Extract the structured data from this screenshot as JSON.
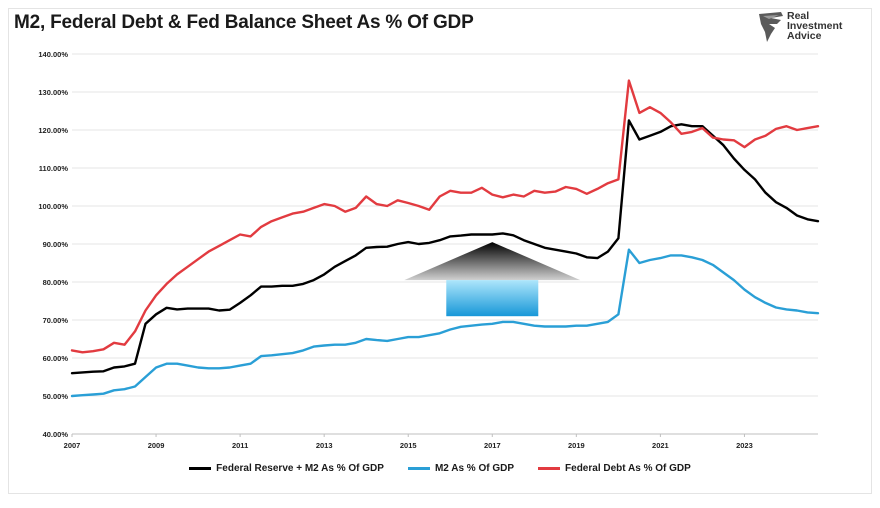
{
  "title": "M2, Federal Debt & Fed Balance Sheet As % Of GDP",
  "logo": {
    "line1": "Real",
    "line2": "Investment",
    "line3": "Advice",
    "icon": "eagle-icon"
  },
  "colors": {
    "fed_m2": "#000000",
    "m2": "#2a9fd6",
    "debt": "#e23b40",
    "grid": "#e6e6e6"
  },
  "chart_data": {
    "type": "line",
    "title": "M2, Federal Debt & Fed Balance Sheet As % Of GDP",
    "xlabel": "",
    "ylabel": "",
    "xlim": [
      2007,
      2024.75
    ],
    "ylim": [
      40,
      140
    ],
    "x_ticks": [
      "2007",
      "2009",
      "2011",
      "2013",
      "2015",
      "2017",
      "2019",
      "2021",
      "2023"
    ],
    "y_ticks": [
      "40.00%",
      "50.00%",
      "60.00%",
      "70.00%",
      "80.00%",
      "90.00%",
      "100.00%",
      "110.00%",
      "120.00%",
      "130.00%",
      "140.00%"
    ],
    "grid": true,
    "legend": "bottom",
    "series": [
      {
        "name": "Federal Reserve + M2 As % Of GDP",
        "color": "#000000",
        "points": [
          [
            2007,
            56
          ],
          [
            2007.25,
            56.2
          ],
          [
            2007.5,
            56.4
          ],
          [
            2007.75,
            56.5
          ],
          [
            2008,
            57.5
          ],
          [
            2008.25,
            57.8
          ],
          [
            2008.5,
            58.5
          ],
          [
            2008.75,
            69
          ],
          [
            2009,
            71.5
          ],
          [
            2009.25,
            73.2
          ],
          [
            2009.5,
            72.8
          ],
          [
            2009.75,
            73
          ],
          [
            2010,
            73
          ],
          [
            2010.25,
            73
          ],
          [
            2010.5,
            72.5
          ],
          [
            2010.75,
            72.7
          ],
          [
            2011,
            74.5
          ],
          [
            2011.25,
            76.5
          ],
          [
            2011.5,
            78.8
          ],
          [
            2011.75,
            78.8
          ],
          [
            2012,
            79
          ],
          [
            2012.25,
            79
          ],
          [
            2012.5,
            79.5
          ],
          [
            2012.75,
            80.5
          ],
          [
            2013,
            82
          ],
          [
            2013.25,
            84
          ],
          [
            2013.5,
            85.5
          ],
          [
            2013.75,
            87
          ],
          [
            2014,
            89
          ],
          [
            2014.25,
            89.2
          ],
          [
            2014.5,
            89.3
          ],
          [
            2014.75,
            90
          ],
          [
            2015,
            90.5
          ],
          [
            2015.25,
            90
          ],
          [
            2015.5,
            90.3
          ],
          [
            2015.75,
            91
          ],
          [
            2016,
            92
          ],
          [
            2016.25,
            92.2
          ],
          [
            2016.5,
            92.5
          ],
          [
            2016.75,
            92.5
          ],
          [
            2017,
            92.5
          ],
          [
            2017.25,
            92.8
          ],
          [
            2017.5,
            92.3
          ],
          [
            2017.75,
            91
          ],
          [
            2018,
            90
          ],
          [
            2018.25,
            89
          ],
          [
            2018.5,
            88.5
          ],
          [
            2018.75,
            88
          ],
          [
            2019,
            87.5
          ],
          [
            2019.25,
            86.5
          ],
          [
            2019.5,
            86.3
          ],
          [
            2019.75,
            88
          ],
          [
            2020,
            91.5
          ],
          [
            2020.25,
            122.5
          ],
          [
            2020.5,
            117.5
          ],
          [
            2020.75,
            118.5
          ],
          [
            2021,
            119.5
          ],
          [
            2021.25,
            121
          ],
          [
            2021.5,
            121.5
          ],
          [
            2021.75,
            121
          ],
          [
            2022,
            121
          ],
          [
            2022.25,
            118.5
          ],
          [
            2022.5,
            116
          ],
          [
            2022.75,
            112.5
          ],
          [
            2023,
            109.5
          ],
          [
            2023.25,
            107
          ],
          [
            2023.5,
            103.5
          ],
          [
            2023.75,
            101
          ],
          [
            2024,
            99.5
          ],
          [
            2024.25,
            97.5
          ],
          [
            2024.5,
            96.5
          ],
          [
            2024.75,
            96
          ]
        ]
      },
      {
        "name": "M2 As % Of GDP",
        "color": "#2a9fd6",
        "points": [
          [
            2007,
            50
          ],
          [
            2007.25,
            50.2
          ],
          [
            2007.5,
            50.4
          ],
          [
            2007.75,
            50.6
          ],
          [
            2008,
            51.5
          ],
          [
            2008.25,
            51.8
          ],
          [
            2008.5,
            52.5
          ],
          [
            2008.75,
            55
          ],
          [
            2009,
            57.5
          ],
          [
            2009.25,
            58.5
          ],
          [
            2009.5,
            58.5
          ],
          [
            2009.75,
            58
          ],
          [
            2010,
            57.5
          ],
          [
            2010.25,
            57.3
          ],
          [
            2010.5,
            57.3
          ],
          [
            2010.75,
            57.5
          ],
          [
            2011,
            58
          ],
          [
            2011.25,
            58.5
          ],
          [
            2011.5,
            60.5
          ],
          [
            2011.75,
            60.7
          ],
          [
            2012,
            61
          ],
          [
            2012.25,
            61.3
          ],
          [
            2012.5,
            62
          ],
          [
            2012.75,
            63
          ],
          [
            2013,
            63.3
          ],
          [
            2013.25,
            63.5
          ],
          [
            2013.5,
            63.5
          ],
          [
            2013.75,
            64
          ],
          [
            2014,
            65
          ],
          [
            2014.25,
            64.7
          ],
          [
            2014.5,
            64.5
          ],
          [
            2014.75,
            65
          ],
          [
            2015,
            65.5
          ],
          [
            2015.25,
            65.5
          ],
          [
            2015.5,
            66
          ],
          [
            2015.75,
            66.5
          ],
          [
            2016,
            67.5
          ],
          [
            2016.25,
            68.2
          ],
          [
            2016.5,
            68.5
          ],
          [
            2016.75,
            68.8
          ],
          [
            2017,
            69
          ],
          [
            2017.25,
            69.5
          ],
          [
            2017.5,
            69.5
          ],
          [
            2017.75,
            69
          ],
          [
            2018,
            68.5
          ],
          [
            2018.25,
            68.3
          ],
          [
            2018.5,
            68.3
          ],
          [
            2018.75,
            68.3
          ],
          [
            2019,
            68.5
          ],
          [
            2019.25,
            68.5
          ],
          [
            2019.5,
            69
          ],
          [
            2019.75,
            69.5
          ],
          [
            2020,
            71.5
          ],
          [
            2020.25,
            88.5
          ],
          [
            2020.5,
            85
          ],
          [
            2020.75,
            85.8
          ],
          [
            2021,
            86.3
          ],
          [
            2021.25,
            87
          ],
          [
            2021.5,
            87
          ],
          [
            2021.75,
            86.5
          ],
          [
            2022,
            85.8
          ],
          [
            2022.25,
            84.5
          ],
          [
            2022.5,
            82.5
          ],
          [
            2022.75,
            80.5
          ],
          [
            2023,
            78
          ],
          [
            2023.25,
            76
          ],
          [
            2023.5,
            74.5
          ],
          [
            2023.75,
            73.3
          ],
          [
            2024,
            72.8
          ],
          [
            2024.25,
            72.5
          ],
          [
            2024.5,
            72
          ],
          [
            2024.75,
            71.8
          ]
        ]
      },
      {
        "name": "Federal Debt As % Of GDP",
        "color": "#e23b40",
        "points": [
          [
            2007,
            62
          ],
          [
            2007.25,
            61.5
          ],
          [
            2007.5,
            61.8
          ],
          [
            2007.75,
            62.3
          ],
          [
            2008,
            64
          ],
          [
            2008.25,
            63.5
          ],
          [
            2008.5,
            67
          ],
          [
            2008.75,
            72.5
          ],
          [
            2009,
            76.5
          ],
          [
            2009.25,
            79.5
          ],
          [
            2009.5,
            82
          ],
          [
            2009.75,
            84
          ],
          [
            2010,
            86
          ],
          [
            2010.25,
            88
          ],
          [
            2010.5,
            89.5
          ],
          [
            2010.75,
            91
          ],
          [
            2011,
            92.5
          ],
          [
            2011.25,
            92
          ],
          [
            2011.5,
            94.5
          ],
          [
            2011.75,
            96
          ],
          [
            2012,
            97
          ],
          [
            2012.25,
            98
          ],
          [
            2012.5,
            98.5
          ],
          [
            2012.75,
            99.5
          ],
          [
            2013,
            100.5
          ],
          [
            2013.25,
            100
          ],
          [
            2013.5,
            98.5
          ],
          [
            2013.75,
            99.5
          ],
          [
            2014,
            102.5
          ],
          [
            2014.25,
            100.5
          ],
          [
            2014.5,
            100
          ],
          [
            2014.75,
            101.5
          ],
          [
            2015,
            100.8
          ],
          [
            2015.25,
            100
          ],
          [
            2015.5,
            99
          ],
          [
            2015.75,
            102.5
          ],
          [
            2016,
            104
          ],
          [
            2016.25,
            103.5
          ],
          [
            2016.5,
            103.5
          ],
          [
            2016.75,
            104.8
          ],
          [
            2017,
            103
          ],
          [
            2017.25,
            102.3
          ],
          [
            2017.5,
            103
          ],
          [
            2017.75,
            102.5
          ],
          [
            2018,
            104
          ],
          [
            2018.25,
            103.5
          ],
          [
            2018.5,
            103.8
          ],
          [
            2018.75,
            105
          ],
          [
            2019,
            104.5
          ],
          [
            2019.25,
            103.2
          ],
          [
            2019.5,
            104.5
          ],
          [
            2019.75,
            106
          ],
          [
            2020,
            107
          ],
          [
            2020.25,
            133
          ],
          [
            2020.5,
            124.5
          ],
          [
            2020.75,
            126
          ],
          [
            2021,
            124.5
          ],
          [
            2021.25,
            122
          ],
          [
            2021.5,
            119
          ],
          [
            2021.75,
            119.5
          ],
          [
            2022,
            120.5
          ],
          [
            2022.25,
            118
          ],
          [
            2022.5,
            117.5
          ],
          [
            2022.75,
            117.3
          ],
          [
            2023,
            115.5
          ],
          [
            2023.25,
            117.5
          ],
          [
            2023.5,
            118.5
          ],
          [
            2023.75,
            120.3
          ],
          [
            2024,
            121
          ],
          [
            2024.25,
            120
          ],
          [
            2024.5,
            120.5
          ],
          [
            2024.75,
            121
          ]
        ]
      }
    ],
    "annotations": [
      {
        "type": "up-arrow",
        "x_center": 2017,
        "y_top": 90.5,
        "y_bottom": 71
      }
    ]
  }
}
